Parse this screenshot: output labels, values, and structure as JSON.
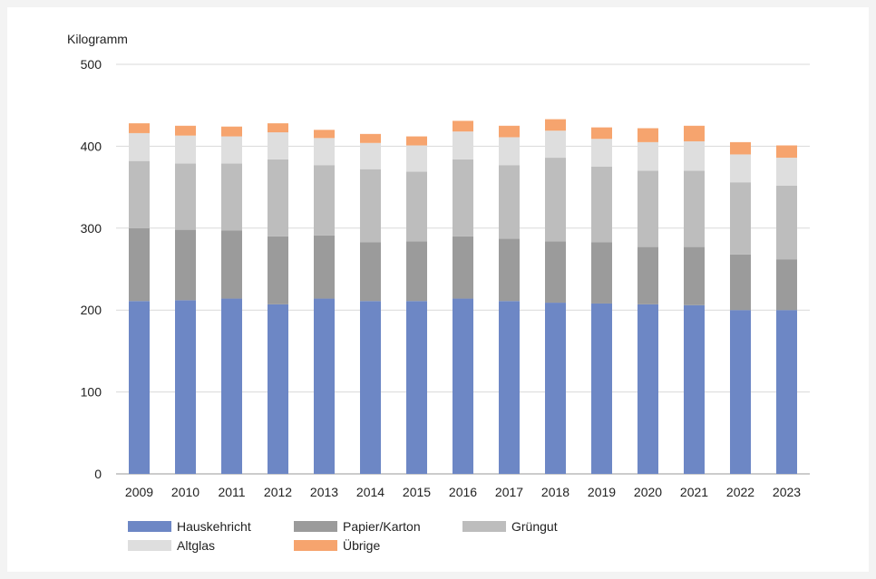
{
  "chart_data": {
    "type": "bar",
    "stacked": true,
    "title": "",
    "xlabel": "",
    "ylabel": "Kilogramm",
    "ylim": [
      0,
      500
    ],
    "yticks": [
      0,
      100,
      200,
      300,
      400,
      500
    ],
    "grid": true,
    "legend_position": "bottom",
    "categories": [
      "2009",
      "2010",
      "2011",
      "2012",
      "2013",
      "2014",
      "2015",
      "2016",
      "2017",
      "2018",
      "2019",
      "2020",
      "2021",
      "2022",
      "2023"
    ],
    "series": [
      {
        "name": "Hauskehricht",
        "color": "#6d87c5",
        "values": [
          211,
          212,
          214,
          207,
          214,
          211,
          211,
          214,
          211,
          209,
          208,
          207,
          206,
          200,
          200
        ]
      },
      {
        "name": "Papier/Karton",
        "color": "#9b9b9b",
        "values": [
          89,
          86,
          83,
          83,
          77,
          72,
          73,
          76,
          76,
          75,
          75,
          70,
          71,
          68,
          62
        ]
      },
      {
        "name": "Grüngut",
        "color": "#bdbdbd",
        "values": [
          82,
          81,
          82,
          94,
          86,
          89,
          85,
          94,
          90,
          102,
          92,
          93,
          93,
          88,
          90
        ]
      },
      {
        "name": "Altglas",
        "color": "#dedede",
        "values": [
          34,
          34,
          33,
          33,
          33,
          32,
          32,
          34,
          34,
          33,
          34,
          35,
          36,
          34,
          34
        ]
      },
      {
        "name": "Übrige",
        "color": "#f6a46e",
        "values": [
          12,
          12,
          12,
          11,
          10,
          11,
          11,
          13,
          14,
          14,
          14,
          17,
          19,
          15,
          15
        ]
      }
    ]
  }
}
